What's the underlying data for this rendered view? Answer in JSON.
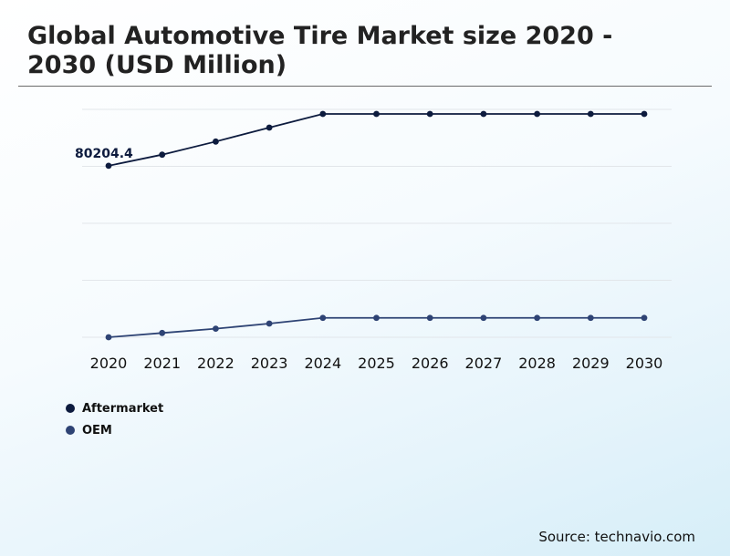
{
  "title": "Global Automotive Tire Market size 2020 - 2030 (USD Million)",
  "source": "Source: technavio.com",
  "chart_data": {
    "type": "line",
    "x": [
      "2020",
      "2021",
      "2022",
      "2023",
      "2024",
      "2025",
      "2026",
      "2027",
      "2028",
      "2029",
      "2030"
    ],
    "series": [
      {
        "name": "Aftermarket",
        "color": "#0d1b3e",
        "values": [
          80204.4,
          84100,
          88700,
          93600,
          98400,
          98400,
          98400,
          98400,
          98400,
          98400,
          98400
        ]
      },
      {
        "name": "OEM",
        "color": "#2e4374",
        "values": [
          20000,
          21500,
          23000,
          24800,
          26800,
          26800,
          26800,
          26800,
          26800,
          26800,
          26800
        ]
      }
    ],
    "data_labels": [
      {
        "series": 0,
        "index": 0,
        "text": "80204.4"
      }
    ],
    "ylim": [
      20000,
      100000
    ],
    "grid": true,
    "legend": "bottom-left"
  }
}
